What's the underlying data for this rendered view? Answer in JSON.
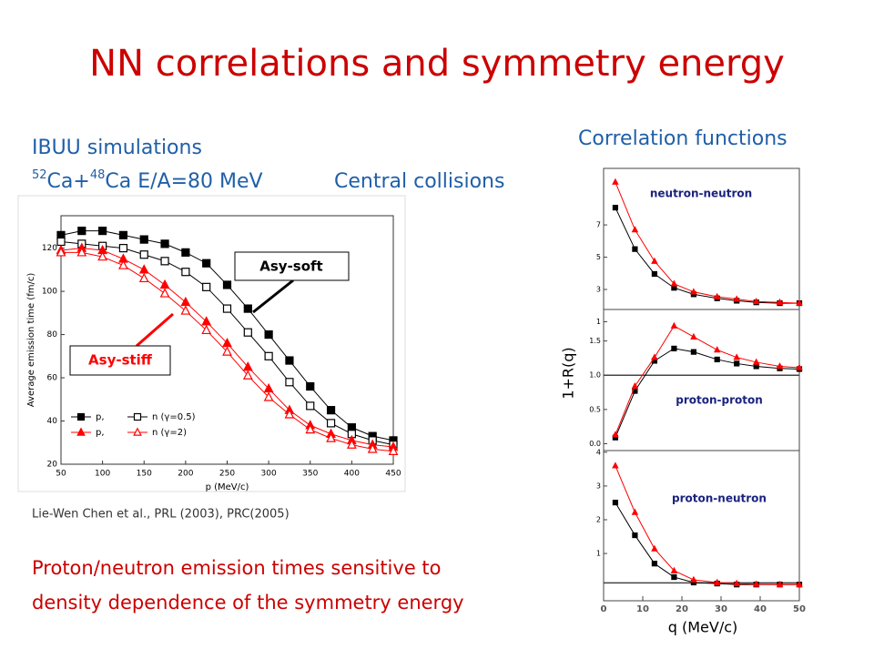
{
  "slide": {
    "title": "NN correlations and symmetry energy",
    "left_heading": "IBUU simulations",
    "reaction": [
      "52",
      "Ca+",
      "48",
      "Ca E/A=80 MeV"
    ],
    "central": "Central collisions",
    "right_heading": "Correlation functions",
    "citation": "Lie-Wen Chen et al., PRL (2003), PRC(2005)",
    "conclusion": [
      "Proton/neutron emission times sensitive to",
      "density dependence of the symmetry energy"
    ]
  },
  "chart_data": [
    {
      "type": "line",
      "xlabel": "p (MeV/c)",
      "ylabel": "Average emission time (fm/c)",
      "x": [
        50,
        75,
        100,
        125,
        150,
        175,
        200,
        225,
        250,
        275,
        300,
        325,
        350,
        375,
        400,
        425,
        450
      ],
      "xlim": [
        50,
        450
      ],
      "xticks": [
        50,
        100,
        150,
        200,
        250,
        300,
        350,
        400,
        450
      ],
      "ylim": [
        20,
        135
      ],
      "yticks": [
        20,
        40,
        60,
        80,
        100,
        120
      ],
      "annotations": [
        "Asy-soft",
        "Asy-stiff"
      ],
      "series": [
        {
          "name": "p,",
          "color": "#000000",
          "marker": "square",
          "filled": true,
          "values": [
            126,
            128,
            128,
            126,
            124,
            122,
            118,
            113,
            103,
            92,
            80,
            68,
            56,
            45,
            37,
            33,
            31
          ]
        },
        {
          "name": "n (γ=0.5)",
          "color": "#000000",
          "marker": "square",
          "filled": false,
          "values": [
            123,
            122,
            121,
            120,
            117,
            114,
            109,
            102,
            92,
            81,
            70,
            58,
            47,
            39,
            34,
            31,
            29
          ]
        },
        {
          "name": "p,",
          "color": "#ff0000",
          "marker": "triangle",
          "filled": true,
          "values": [
            119,
            120,
            119,
            115,
            110,
            103,
            95,
            86,
            76,
            65,
            55,
            45,
            38,
            34,
            31,
            29,
            28
          ]
        },
        {
          "name": "n (γ=2)",
          "color": "#ff0000",
          "marker": "triangle",
          "filled": false,
          "values": [
            118,
            118,
            116,
            112,
            106,
            99,
            91,
            82,
            72,
            61,
            51,
            43,
            36,
            32,
            29,
            27,
            26
          ]
        }
      ]
    },
    {
      "type": "line",
      "label": "neutron-neutron",
      "x": [
        3,
        8,
        13,
        18,
        23,
        29,
        34,
        39,
        45,
        50
      ],
      "ylim": [
        1.76,
        10.5
      ],
      "yticks": [
        1,
        3,
        5,
        7
      ],
      "series": [
        {
          "color": "#000000",
          "marker": "square",
          "filled": true,
          "values": [
            8.07,
            5.5,
            3.96,
            3.1,
            2.7,
            2.45,
            2.3,
            2.2,
            2.15,
            2.15
          ]
        },
        {
          "color": "#ff0000",
          "marker": "triangle",
          "filled": true,
          "values": [
            9.65,
            6.7,
            4.75,
            3.35,
            2.85,
            2.55,
            2.4,
            2.25,
            2.2,
            2.15
          ]
        }
      ]
    },
    {
      "type": "line",
      "label": "proton-proton",
      "ylabel": "1+R(q)",
      "x": [
        3,
        8,
        13,
        18,
        23,
        29,
        34,
        39,
        45,
        50
      ],
      "ylim": [
        -0.1,
        1.96
      ],
      "yticks": [
        {
          "value": 0,
          "label": "0.0"
        },
        0.5,
        {
          "value": 1,
          "label": "1.0"
        },
        1.5
      ],
      "refline": 1,
      "series": [
        {
          "color": "#000000",
          "marker": "square",
          "filled": true,
          "values": [
            0.09,
            0.77,
            1.21,
            1.39,
            1.34,
            1.23,
            1.17,
            1.13,
            1.1,
            1.09
          ]
        },
        {
          "color": "#ff0000",
          "marker": "triangle",
          "filled": true,
          "values": [
            0.13,
            0.84,
            1.26,
            1.72,
            1.56,
            1.37,
            1.26,
            1.19,
            1.13,
            1.11
          ]
        }
      ]
    },
    {
      "type": "line",
      "label": "proton-neutron",
      "xlabel": "q (MeV/c)",
      "x": [
        3,
        8,
        13,
        18,
        23,
        29,
        34,
        39,
        45,
        50
      ],
      "xlim": [
        0,
        50
      ],
      "xticks": [
        0,
        10,
        20,
        30,
        40,
        50
      ],
      "ylim": [
        -0.4,
        4.05
      ],
      "yticks": [
        1,
        2,
        3,
        4
      ],
      "refline": 0.13,
      "series": [
        {
          "color": "#000000",
          "marker": "square",
          "filled": true,
          "values": [
            2.51,
            1.54,
            0.7,
            0.3,
            0.14,
            0.11,
            0.08,
            0.08,
            0.08,
            0.08
          ]
        },
        {
          "color": "#ff0000",
          "marker": "triangle",
          "filled": true,
          "values": [
            3.6,
            2.22,
            1.14,
            0.49,
            0.22,
            0.14,
            0.11,
            0.09,
            0.08,
            0.08
          ]
        }
      ]
    }
  ]
}
